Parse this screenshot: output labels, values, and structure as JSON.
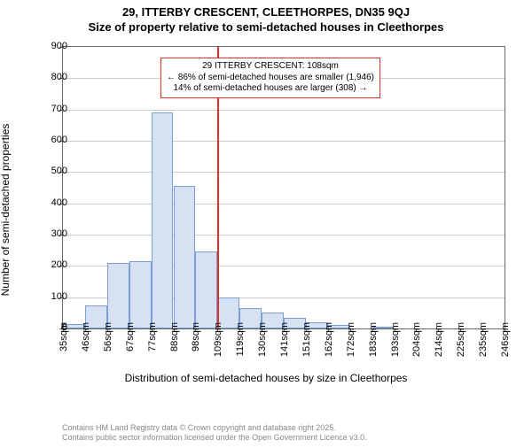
{
  "header": {
    "address": "29, ITTERBY CRESCENT, CLEETHORPES, DN35 9QJ",
    "subtitle": "Size of property relative to semi-detached houses in Cleethorpes"
  },
  "chart": {
    "type": "histogram",
    "ylabel": "Number of semi-detached properties",
    "xlabel": "Distribution of semi-detached houses by size in Cleethorpes",
    "ylim": [
      0,
      900
    ],
    "ytick_step": 100,
    "yticks": [
      0,
      100,
      200,
      300,
      400,
      500,
      600,
      700,
      800,
      900
    ],
    "xticks": [
      "35sqm",
      "46sqm",
      "56sqm",
      "67sqm",
      "77sqm",
      "88sqm",
      "98sqm",
      "109sqm",
      "119sqm",
      "130sqm",
      "141sqm",
      "151sqm",
      "162sqm",
      "172sqm",
      "183sqm",
      "193sqm",
      "204sqm",
      "214sqm",
      "225sqm",
      "235sqm",
      "246sqm"
    ],
    "bars": [
      15,
      75,
      210,
      215,
      690,
      455,
      245,
      100,
      65,
      50,
      35,
      20,
      10,
      0,
      5,
      0,
      0,
      0,
      0,
      0
    ],
    "bar_fill": "#d6e2f3",
    "bar_stroke": "#7a9fd4",
    "grid_color": "#cccccc",
    "axis_color": "#666666",
    "background_color": "#ffffff",
    "tick_fontsize": 11,
    "label_fontsize": 12,
    "title_fontsize": 13,
    "marker": {
      "position_index": 7,
      "color": "#e03030",
      "line1": "29 ITTERBY CRESCENT: 108sqm",
      "line2": "← 86% of semi-detached houses are smaller (1,946)",
      "line3": "14% of semi-detached houses are larger (308) →"
    }
  },
  "footer": {
    "line1": "Contains HM Land Registry data © Crown copyright and database right 2025.",
    "line2": "Contains public sector information licensed under the Open Government Licence v3.0."
  }
}
